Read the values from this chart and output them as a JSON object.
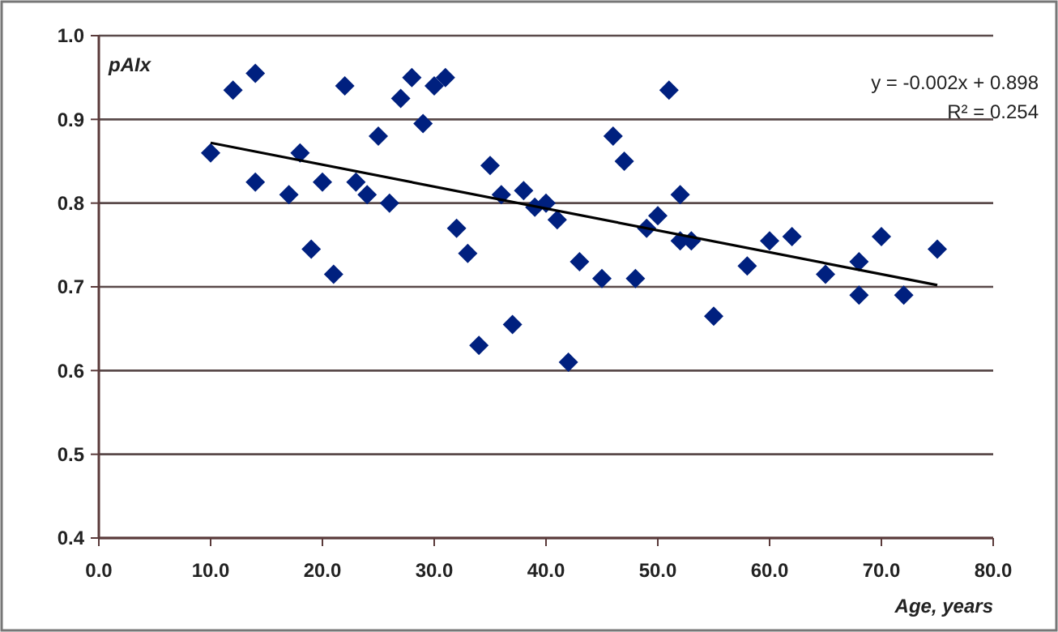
{
  "chart_data": {
    "type": "scatter",
    "xlabel": "Age, years",
    "ylabel": "pAIx",
    "xlim": [
      0,
      80
    ],
    "ylim": [
      0.4,
      1.0
    ],
    "xticks": [
      {
        "value": 0,
        "label": "0.0"
      },
      {
        "value": 10,
        "label": "10.0"
      },
      {
        "value": 20,
        "label": "20.0"
      },
      {
        "value": 30,
        "label": "30.0"
      },
      {
        "value": 40,
        "label": "40.0"
      },
      {
        "value": 50,
        "label": "50.0"
      },
      {
        "value": 60,
        "label": "60.0"
      },
      {
        "value": 70,
        "label": "70.0"
      },
      {
        "value": 80,
        "label": "80.0"
      }
    ],
    "yticks": [
      0.4,
      0.5,
      0.6,
      0.7,
      0.8,
      0.9,
      {
        "value": 1,
        "label": "1.0"
      }
    ],
    "grid": "y",
    "marker": "diamond",
    "annotations": [
      "y = -0.002x + 0.898",
      "R² = 0.254"
    ],
    "series": [
      {
        "color": "#00207f",
        "x": [
          10,
          12,
          14,
          14,
          17,
          18,
          19,
          20,
          21,
          22,
          23,
          24,
          25,
          26,
          27,
          28,
          29,
          30,
          31,
          32,
          33,
          34,
          35,
          36,
          37,
          38,
          39,
          40,
          41,
          42,
          43,
          45,
          46,
          47,
          48,
          49,
          50,
          51,
          52,
          52,
          53,
          55,
          58,
          60,
          62,
          65,
          68,
          68,
          70,
          72,
          75
        ],
        "values": [
          0.86,
          0.935,
          0.955,
          0.825,
          0.81,
          0.86,
          0.745,
          0.825,
          0.715,
          0.94,
          0.825,
          0.81,
          0.88,
          0.8,
          0.925,
          0.95,
          0.895,
          0.94,
          0.95,
          0.77,
          0.74,
          0.63,
          0.845,
          0.81,
          0.655,
          0.815,
          0.795,
          0.8,
          0.78,
          0.61,
          0.73,
          0.71,
          0.88,
          0.85,
          0.71,
          0.77,
          0.785,
          0.935,
          0.755,
          0.81,
          0.755,
          0.665,
          0.725,
          0.755,
          0.76,
          0.715,
          0.73,
          0.69,
          0.76,
          0.69,
          0.745
        ]
      },
      {
        "type": "line",
        "color": "#000000",
        "marker": "none",
        "x": [
          10,
          75
        ],
        "values": [
          0.872,
          0.702
        ]
      }
    ]
  }
}
